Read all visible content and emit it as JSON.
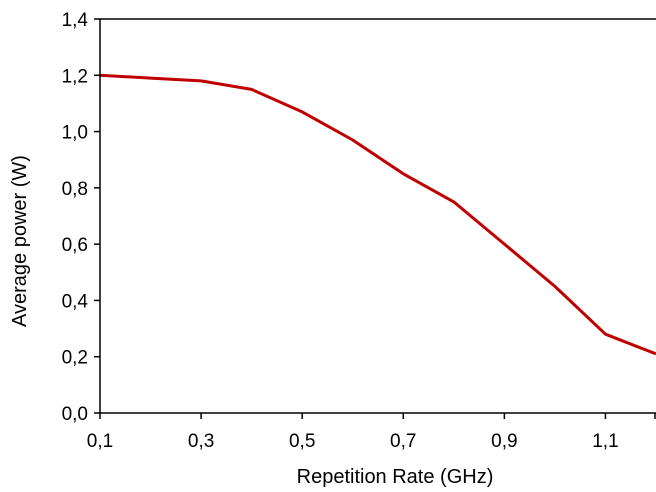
{
  "chart_data": {
    "type": "line",
    "title": "",
    "xlabel": "Repetition Rate (GHz)",
    "ylabel": "Average power (W)",
    "xlim": [
      0.1,
      1.2
    ],
    "ylim": [
      0.0,
      1.4
    ],
    "xticks": [
      0.1,
      0.3,
      0.5,
      0.7,
      0.9,
      1.1
    ],
    "xtick_labels": [
      "0,1",
      "0,3",
      "0,5",
      "0,7",
      "0,9",
      "1,1"
    ],
    "yticks": [
      0.0,
      0.2,
      0.4,
      0.6,
      0.8,
      1.0,
      1.2,
      1.4
    ],
    "ytick_labels": [
      "0,0",
      "0,2",
      "0,4",
      "0,6",
      "0,8",
      "1,0",
      "1,2",
      "1,4"
    ],
    "grid": false,
    "legend": "none",
    "series": [
      {
        "color": "#c00000",
        "x": [
          0.1,
          0.2,
          0.3,
          0.4,
          0.5,
          0.6,
          0.7,
          0.8,
          0.9,
          1.0,
          1.1,
          1.2
        ],
        "values": [
          1.2,
          1.19,
          1.18,
          1.15,
          1.07,
          0.97,
          0.85,
          0.75,
          0.6,
          0.45,
          0.28,
          0.21
        ]
      }
    ]
  }
}
